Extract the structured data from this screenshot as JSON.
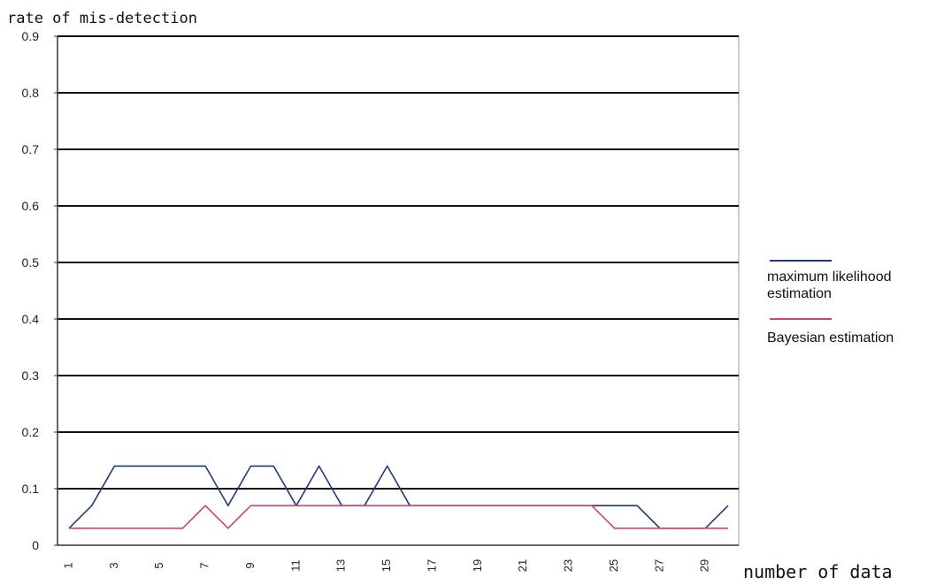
{
  "chart_data": {
    "type": "line",
    "title": "",
    "xlabel": "number of data",
    "ylabel": "rate of mis-detection",
    "ylim": [
      0,
      0.9
    ],
    "yticks": [
      "0",
      "0.1",
      "0.2",
      "0.3",
      "0.4",
      "0.5",
      "0.6",
      "0.7",
      "0.8",
      "0.9"
    ],
    "x": [
      1,
      2,
      3,
      4,
      5,
      6,
      7,
      8,
      9,
      10,
      11,
      12,
      13,
      14,
      15,
      16,
      17,
      18,
      19,
      20,
      21,
      22,
      23,
      24,
      25,
      26,
      27,
      28,
      29,
      30
    ],
    "xticks": [
      "1",
      "3",
      "5",
      "7",
      "9",
      "11",
      "13",
      "15",
      "17",
      "19",
      "21",
      "23",
      "25",
      "27",
      "29"
    ],
    "grid": true,
    "legend_position": "right",
    "series": [
      {
        "name": "maximum likelihood estimation",
        "legend_lines": [
          "maximum likelihood",
          "estimation"
        ],
        "color": "#1f3a78",
        "values": [
          0.03,
          0.07,
          0.14,
          0.14,
          0.14,
          0.14,
          0.14,
          0.07,
          0.14,
          0.14,
          0.07,
          0.14,
          0.07,
          0.07,
          0.14,
          0.07,
          0.07,
          0.07,
          0.07,
          0.07,
          0.07,
          0.07,
          0.07,
          0.07,
          0.07,
          0.07,
          0.03,
          0.03,
          0.03,
          0.07
        ]
      },
      {
        "name": "Bayesian estimation",
        "legend_lines": [
          "Bayesian estimation"
        ],
        "color": "#d4426f",
        "values": [
          0.03,
          0.03,
          0.03,
          0.03,
          0.03,
          0.03,
          0.07,
          0.03,
          0.07,
          0.07,
          0.07,
          0.07,
          0.07,
          0.07,
          0.07,
          0.07,
          0.07,
          0.07,
          0.07,
          0.07,
          0.07,
          0.07,
          0.07,
          0.07,
          0.03,
          0.03,
          0.03,
          0.03,
          0.03,
          0.03
        ]
      }
    ]
  }
}
